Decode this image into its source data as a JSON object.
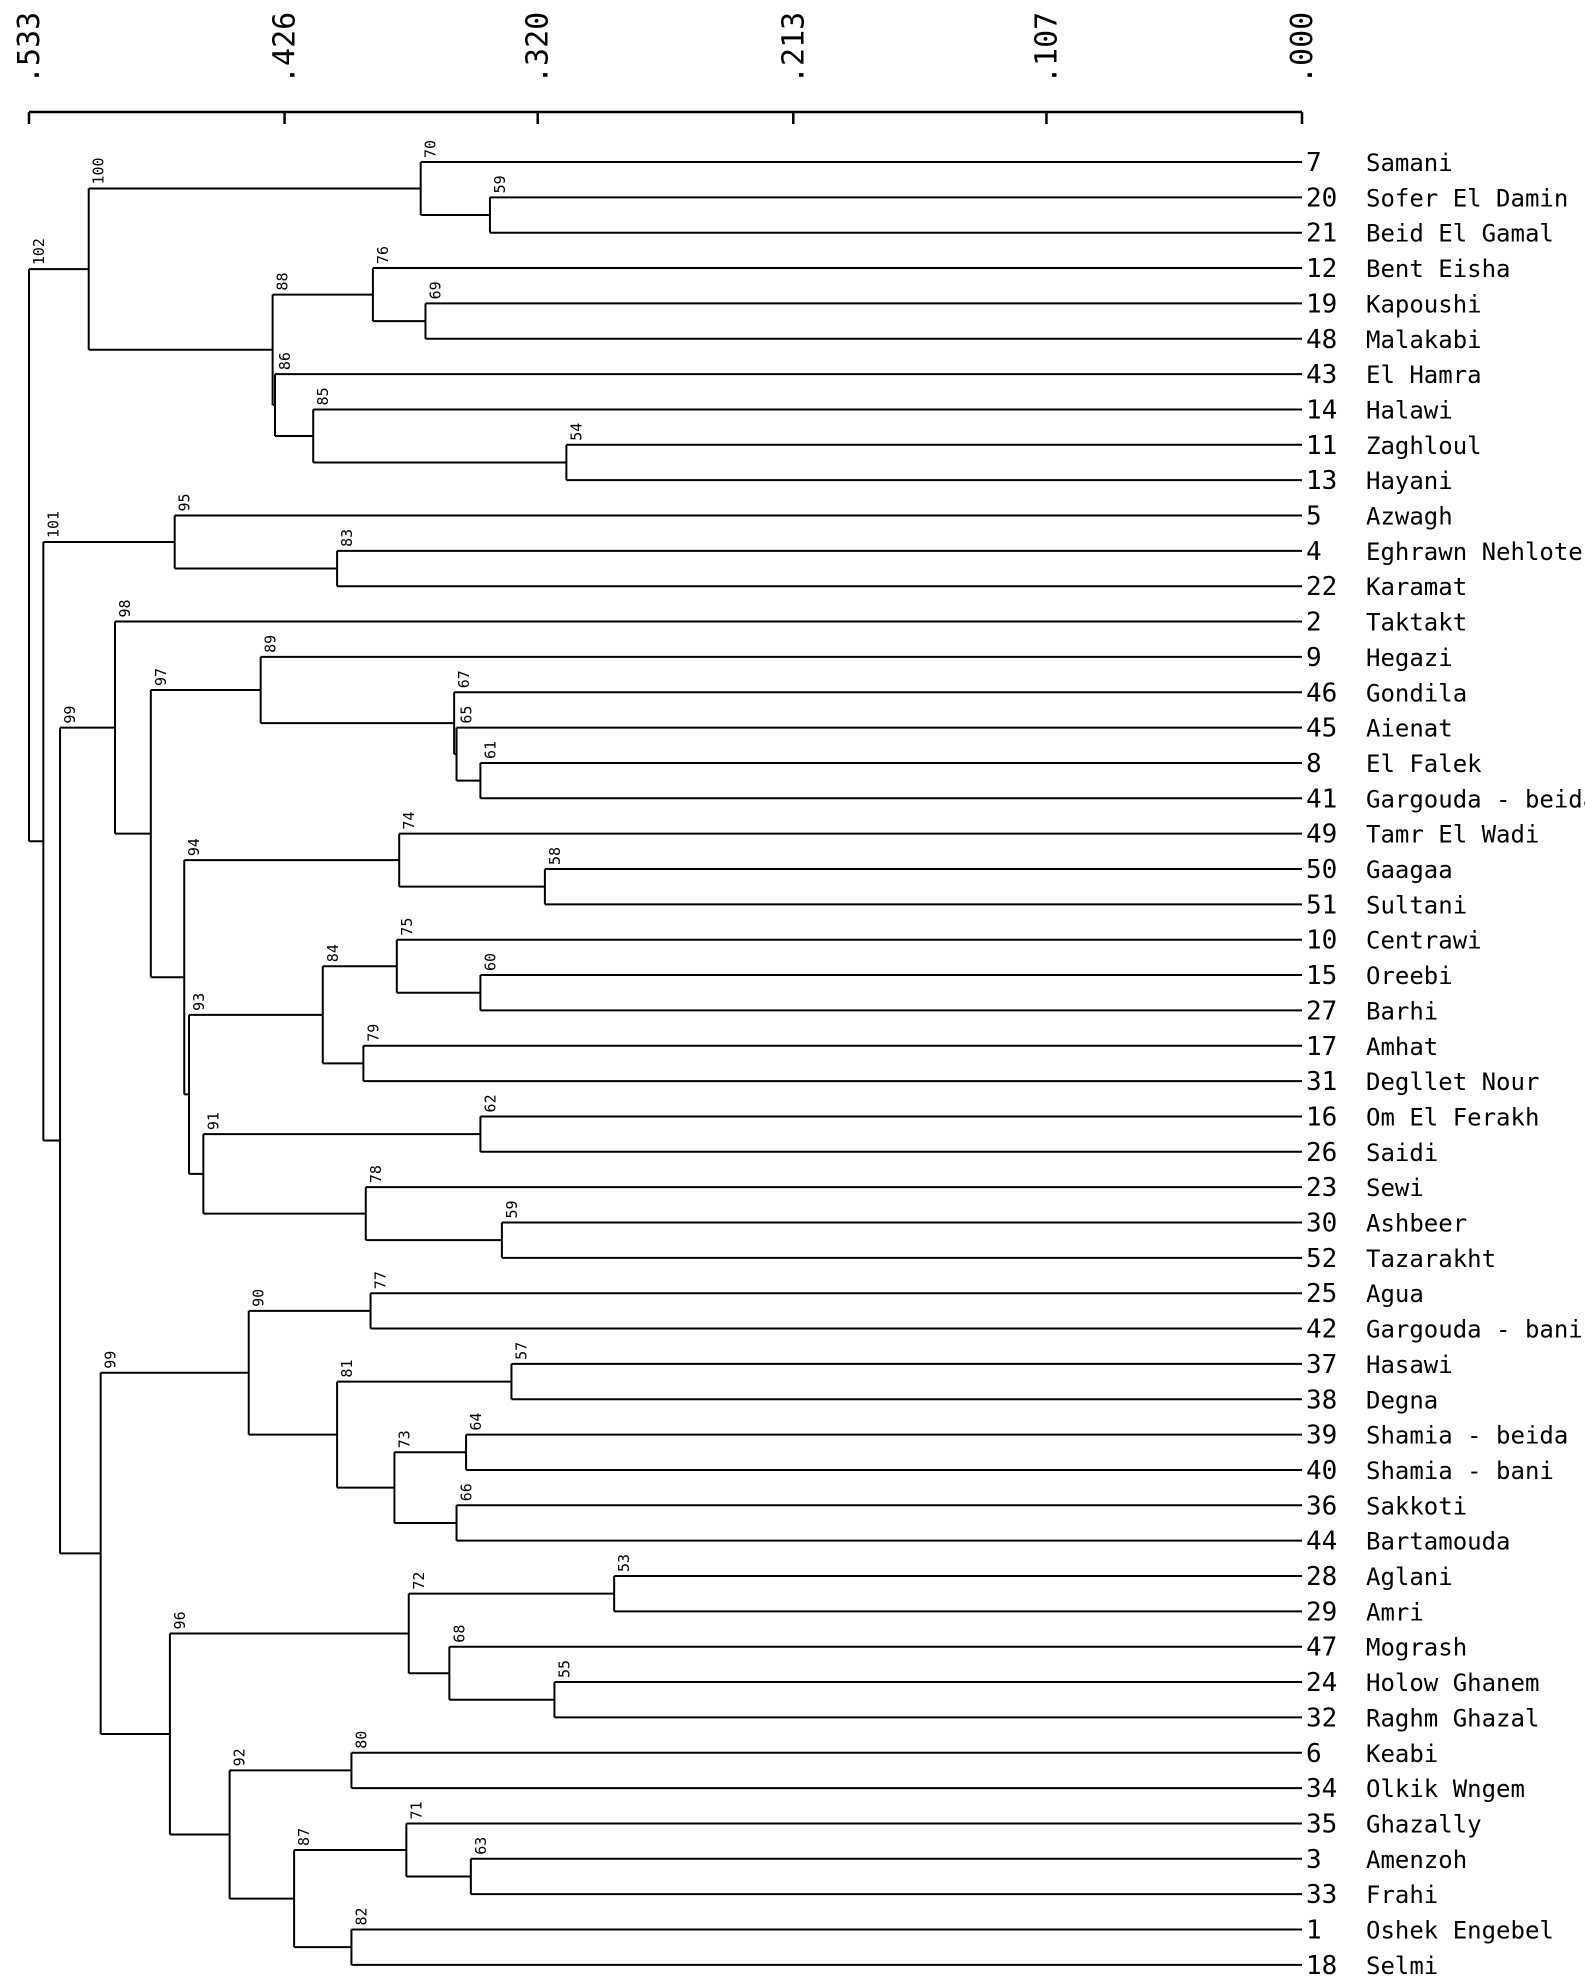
{
  "axis": {
    "ticks": [
      ".533",
      ".426",
      ".320",
      ".213",
      ".107",
      ".000"
    ],
    "values": [
      0.533,
      0.426,
      0.32,
      0.213,
      0.107,
      0.0
    ]
  },
  "leaves": [
    {
      "id": "7",
      "name": "Samani"
    },
    {
      "id": "20",
      "name": "Sofer El Damin"
    },
    {
      "id": "21",
      "name": "Beid El Gamal"
    },
    {
      "id": "12",
      "name": "Bent Eisha"
    },
    {
      "id": "19",
      "name": "Kapoushi"
    },
    {
      "id": "48",
      "name": "Malakabi"
    },
    {
      "id": "43",
      "name": "El Hamra"
    },
    {
      "id": "14",
      "name": "Halawi"
    },
    {
      "id": "11",
      "name": "Zaghloul"
    },
    {
      "id": "13",
      "name": "Hayani"
    },
    {
      "id": "5",
      "name": "Azwagh"
    },
    {
      "id": "4",
      "name": "Eghrawn Nehloten"
    },
    {
      "id": "22",
      "name": "Karamat"
    },
    {
      "id": "2",
      "name": "Taktakt"
    },
    {
      "id": "9",
      "name": "Hegazi"
    },
    {
      "id": "46",
      "name": "Gondila"
    },
    {
      "id": "45",
      "name": "Aienat"
    },
    {
      "id": "8",
      "name": "El Falek"
    },
    {
      "id": "41",
      "name": "Gargouda - beida"
    },
    {
      "id": "49",
      "name": "Tamr El Wadi"
    },
    {
      "id": "50",
      "name": "Gaagaa"
    },
    {
      "id": "51",
      "name": "Sultani"
    },
    {
      "id": "10",
      "name": "Centrawi"
    },
    {
      "id": "15",
      "name": "Oreebi"
    },
    {
      "id": "27",
      "name": "Barhi"
    },
    {
      "id": "17",
      "name": "Amhat"
    },
    {
      "id": "31",
      "name": "Degllet Nour"
    },
    {
      "id": "16",
      "name": "Om El Ferakh"
    },
    {
      "id": "26",
      "name": "Saidi"
    },
    {
      "id": "23",
      "name": "Sewi"
    },
    {
      "id": "30",
      "name": "Ashbeer"
    },
    {
      "id": "52",
      "name": "Tazarakht"
    },
    {
      "id": "25",
      "name": "Agua"
    },
    {
      "id": "42",
      "name": "Gargouda - bani"
    },
    {
      "id": "37",
      "name": "Hasawi"
    },
    {
      "id": "38",
      "name": "Degna"
    },
    {
      "id": "39",
      "name": "Shamia - beida"
    },
    {
      "id": "40",
      "name": "Shamia - bani"
    },
    {
      "id": "36",
      "name": "Sakkoti"
    },
    {
      "id": "44",
      "name": "Bartamouda"
    },
    {
      "id": "28",
      "name": "Aglani"
    },
    {
      "id": "29",
      "name": "Amri"
    },
    {
      "id": "47",
      "name": "Mogrash"
    },
    {
      "id": "24",
      "name": "Holow Ghanem"
    },
    {
      "id": "32",
      "name": "Raghm Ghazal"
    },
    {
      "id": "6",
      "name": "Keabi"
    },
    {
      "id": "34",
      "name": "Olkik Wngem"
    },
    {
      "id": "35",
      "name": "Ghazally"
    },
    {
      "id": "3",
      "name": "Amenzoh"
    },
    {
      "id": "33",
      "name": "Frahi"
    },
    {
      "id": "1",
      "name": "Oshek Engebel"
    },
    {
      "id": "18",
      "name": "Selmi"
    }
  ],
  "tree": {
    "h": 0.533,
    "b": "102",
    "c": [
      {
        "h": 0.508,
        "b": "100",
        "c": [
          {
            "h": 0.369,
            "b": "70",
            "c": [
              {
                "leaf": 0
              },
              {
                "h": 0.34,
                "b": "59",
                "c": [
                  {
                    "leaf": 1
                  },
                  {
                    "leaf": 2
                  }
                ]
              }
            ]
          },
          {
            "h": 0.431,
            "b": "88",
            "c": [
              {
                "h": 0.389,
                "b": "76",
                "c": [
                  {
                    "leaf": 3
                  },
                  {
                    "h": 0.367,
                    "b": "69",
                    "c": [
                      {
                        "leaf": 4
                      },
                      {
                        "leaf": 5
                      }
                    ]
                  }
                ]
              },
              {
                "h": 0.43,
                "b": "86",
                "c": [
                  {
                    "leaf": 6
                  },
                  {
                    "h": 0.414,
                    "b": "85",
                    "c": [
                      {
                        "leaf": 7
                      },
                      {
                        "h": 0.308,
                        "b": "54",
                        "c": [
                          {
                            "leaf": 8
                          },
                          {
                            "leaf": 9
                          }
                        ]
                      }
                    ]
                  }
                ]
              }
            ]
          }
        ]
      },
      {
        "h": 0.527,
        "b": "101",
        "c": [
          {
            "h": 0.472,
            "b": "95",
            "c": [
              {
                "leaf": 10
              },
              {
                "h": 0.404,
                "b": "83",
                "c": [
                  {
                    "leaf": 11
                  },
                  {
                    "leaf": 12
                  }
                ]
              }
            ]
          },
          {
            "h": 0.52,
            "b": "99",
            "c": [
              {
                "h": 0.497,
                "b": "98",
                "c": [
                  {
                    "leaf": 13
                  },
                  {
                    "h": 0.482,
                    "b": "97",
                    "c": [
                      {
                        "h": 0.436,
                        "b": "89",
                        "c": [
                          {
                            "leaf": 14
                          },
                          {
                            "h": 0.355,
                            "b": "67",
                            "c": [
                              {
                                "leaf": 15
                              },
                              {
                                "h": 0.354,
                                "b": "65",
                                "c": [
                                  {
                                    "leaf": 16
                                  },
                                  {
                                    "h": 0.344,
                                    "b": "61",
                                    "c": [
                                      {
                                        "leaf": 17
                                      },
                                      {
                                        "leaf": 18
                                      }
                                    ]
                                  }
                                ]
                              }
                            ]
                          }
                        ]
                      },
                      {
                        "h": 0.468,
                        "b": "94",
                        "c": [
                          {
                            "h": 0.378,
                            "b": "74",
                            "c": [
                              {
                                "leaf": 19
                              },
                              {
                                "h": 0.317,
                                "b": "58",
                                "c": [
                                  {
                                    "leaf": 20
                                  },
                                  {
                                    "leaf": 21
                                  }
                                ]
                              }
                            ]
                          },
                          {
                            "h": 0.466,
                            "b": "93",
                            "c": [
                              {
                                "h": 0.41,
                                "b": "84",
                                "c": [
                                  {
                                    "h": 0.379,
                                    "b": "75",
                                    "c": [
                                      {
                                        "leaf": 22
                                      },
                                      {
                                        "h": 0.344,
                                        "b": "60",
                                        "c": [
                                          {
                                            "leaf": 23
                                          },
                                          {
                                            "leaf": 24
                                          }
                                        ]
                                      }
                                    ]
                                  },
                                  {
                                    "h": 0.393,
                                    "b": "79",
                                    "c": [
                                      {
                                        "leaf": 25
                                      },
                                      {
                                        "leaf": 26
                                      }
                                    ]
                                  }
                                ]
                              },
                              {
                                "h": 0.46,
                                "b": "91",
                                "c": [
                                  {
                                    "h": 0.344,
                                    "b": "62",
                                    "c": [
                                      {
                                        "leaf": 27
                                      },
                                      {
                                        "leaf": 28
                                      }
                                    ]
                                  },
                                  {
                                    "h": 0.392,
                                    "b": "78",
                                    "c": [
                                      {
                                        "leaf": 29
                                      },
                                      {
                                        "h": 0.335,
                                        "b": "59",
                                        "c": [
                                          {
                                            "leaf": 30
                                          },
                                          {
                                            "leaf": 31
                                          }
                                        ]
                                      }
                                    ]
                                  }
                                ]
                              }
                            ]
                          }
                        ]
                      }
                    ]
                  }
                ]
              },
              {
                "h": 0.503,
                "b": "99",
                "c": [
                  {
                    "h": 0.441,
                    "b": "90",
                    "c": [
                      {
                        "h": 0.39,
                        "b": "77",
                        "c": [
                          {
                            "leaf": 32
                          },
                          {
                            "leaf": 33
                          }
                        ]
                      },
                      {
                        "h": 0.404,
                        "b": "81",
                        "c": [
                          {
                            "h": 0.331,
                            "b": "57",
                            "c": [
                              {
                                "leaf": 34
                              },
                              {
                                "leaf": 35
                              }
                            ]
                          },
                          {
                            "h": 0.38,
                            "b": "73",
                            "c": [
                              {
                                "h": 0.35,
                                "b": "64",
                                "c": [
                                  {
                                    "leaf": 36
                                  },
                                  {
                                    "leaf": 37
                                  }
                                ]
                              },
                              {
                                "h": 0.354,
                                "b": "66",
                                "c": [
                                  {
                                    "leaf": 38
                                  },
                                  {
                                    "leaf": 39
                                  }
                                ]
                              }
                            ]
                          }
                        ]
                      }
                    ]
                  },
                  {
                    "h": 0.474,
                    "b": "96",
                    "c": [
                      {
                        "h": 0.374,
                        "b": "72",
                        "c": [
                          {
                            "h": 0.288,
                            "b": "53",
                            "c": [
                              {
                                "leaf": 40
                              },
                              {
                                "leaf": 41
                              }
                            ]
                          },
                          {
                            "h": 0.357,
                            "b": "68",
                            "c": [
                              {
                                "leaf": 42
                              },
                              {
                                "h": 0.313,
                                "b": "55",
                                "c": [
                                  {
                                    "leaf": 43
                                  },
                                  {
                                    "leaf": 44
                                  }
                                ]
                              }
                            ]
                          }
                        ]
                      },
                      {
                        "h": 0.449,
                        "b": "92",
                        "c": [
                          {
                            "h": 0.398,
                            "b": "80",
                            "c": [
                              {
                                "leaf": 45
                              },
                              {
                                "leaf": 46
                              }
                            ]
                          },
                          {
                            "h": 0.422,
                            "b": "87",
                            "c": [
                              {
                                "h": 0.375,
                                "b": "71",
                                "c": [
                                  {
                                    "leaf": 47
                                  },
                                  {
                                    "h": 0.348,
                                    "b": "63",
                                    "c": [
                                      {
                                        "leaf": 48
                                      },
                                      {
                                        "leaf": 49
                                      }
                                    ]
                                  }
                                ]
                              },
                              {
                                "h": 0.398,
                                "b": "82",
                                "c": [
                                  {
                                    "leaf": 50
                                  },
                                  {
                                    "leaf": 51
                                  }
                                ]
                              }
                            ]
                          }
                        ]
                      }
                    ]
                  }
                ]
              }
            ]
          }
        ]
      }
    ]
  }
}
